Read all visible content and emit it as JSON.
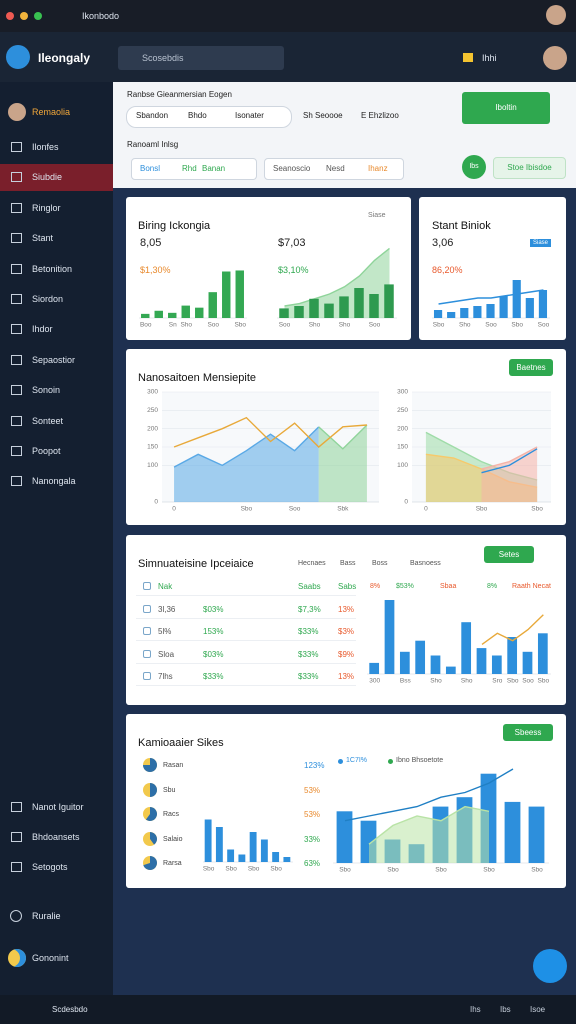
{
  "browser": {
    "tab": "Ikonbodo"
  },
  "header": {
    "logo": "Ileongaly",
    "search": "Scosebdis",
    "user": "Ihhi"
  },
  "sidebar": {
    "profile": "Remaolia",
    "active": 1,
    "items": [
      "Ilonfes",
      "Siubdie",
      "Ringlor",
      "Stant",
      "Betonition",
      "Siordon",
      "Ihdor",
      "Sepaostior",
      "Sonoin",
      "Sonteet",
      "Poopot",
      "Nanongala"
    ],
    "bottom": [
      "Nanot Iguitor",
      "Bhdoansets",
      "Setogots"
    ],
    "account": "Ruralie",
    "workspace": "Gononint"
  },
  "filters": {
    "label1": "Ranbse Gieanmersian Eogen",
    "chips": [
      "Sbandon",
      "Bhdo",
      "Isonater"
    ],
    "options": [
      "Sh Seoooe",
      "E Ehzlizoo"
    ],
    "button": "Iboltin",
    "label2": "Ranoaml Inlsg",
    "select1": [
      "Bonsl",
      "Rhd",
      "Banan"
    ],
    "select2": [
      "Seanoscio",
      "Nesd",
      "Ihanz"
    ],
    "badge": "Ibs",
    "button2": "Stoe Ibisdoe"
  },
  "card1": {
    "title": "Biring Ickongia",
    "tag": "Siase",
    "charts": [
      {
        "kpi": "8,05",
        "delta": "$1,30%",
        "ylim": [
          0,
          60
        ],
        "categories": [
          "Boo",
          null,
          "Sn",
          "Sho",
          null,
          "Soo",
          null,
          "Sbo"
        ],
        "series": [
          {
            "type": "bar",
            "color": "#34a853",
            "values": [
              4,
              7,
              5,
              12,
              10,
              25,
              45,
              46
            ]
          }
        ]
      },
      {
        "kpi": "$7,03",
        "delta": "$3,10%",
        "ylim": [
          0,
          60
        ],
        "categories": [
          "Soo",
          null,
          "Sho",
          null,
          "Sho",
          null,
          "Soo",
          null
        ],
        "series": [
          {
            "type": "area",
            "color": "#8fd49a",
            "values": [
              10,
              12,
              16,
              20,
              26,
              35,
              48,
              58
            ]
          },
          {
            "type": "bar",
            "color": "#2e9a4f",
            "values": [
              8,
              10,
              16,
              12,
              18,
              25,
              20,
              28
            ]
          }
        ]
      }
    ]
  },
  "card2": {
    "title": "Stant Biniok",
    "tag": "Siase",
    "chart": {
      "kpi": "3,06",
      "delta": "86,20%",
      "ylim": [
        0,
        60
      ],
      "categories": [
        "Sbo",
        null,
        "Sho",
        null,
        "Soo",
        null,
        "Sbo",
        null,
        "Soo"
      ],
      "series": [
        {
          "type": "bar",
          "color": "#2d8fdc",
          "values": [
            8,
            6,
            10,
            12,
            14,
            22,
            38,
            20,
            28
          ]
        },
        {
          "type": "line",
          "color": "#2d8fdc",
          "values": [
            14,
            16,
            18,
            20,
            20,
            22,
            24,
            26,
            28
          ]
        }
      ]
    }
  },
  "card3": {
    "title": "Nanosaitoen Mensiepite",
    "button": "Baetnes",
    "charts": [
      {
        "ylim": [
          0,
          300
        ],
        "yticks": [
          0,
          100,
          150,
          200,
          250,
          300
        ],
        "categories": [
          "0",
          null,
          null,
          "Sbo",
          null,
          "Soo",
          null,
          "Sbk",
          null
        ],
        "series": [
          {
            "type": "area",
            "color": "#5aa9e6",
            "values": [
              95,
              130,
              100,
              140,
              185,
              140,
              205,
              null,
              null
            ]
          },
          {
            "type": "area",
            "color": "#8fd49a",
            "values": [
              null,
              null,
              null,
              null,
              null,
              null,
              205,
              145,
              210
            ]
          },
          {
            "type": "line",
            "color": "#e8a93a",
            "values": [
              150,
              175,
              200,
              230,
              165,
              215,
              150,
              205,
              210
            ]
          }
        ]
      },
      {
        "ylim": [
          0,
          300
        ],
        "yticks": [
          0,
          100,
          150,
          200,
          250,
          300
        ],
        "categories": [
          "0",
          null,
          "Sbo",
          null,
          "Sbo"
        ],
        "series": [
          {
            "type": "area",
            "color": "#9fdca8",
            "values": [
              190,
              150,
              110,
              80,
              60
            ]
          },
          {
            "type": "area",
            "color": "#f7c96a",
            "values": [
              130,
              120,
              90,
              55,
              40
            ]
          },
          {
            "type": "area",
            "color": "#f5b3a8",
            "values": [
              null,
              null,
              90,
              110,
              150
            ]
          },
          {
            "type": "line",
            "color": "#2d8fdc",
            "values": [
              null,
              null,
              80,
              100,
              145
            ]
          }
        ]
      }
    ]
  },
  "card4": {
    "title": "Simnuateisine Ipceiaice",
    "button": "Setes",
    "head": [
      "Hecnaes",
      "Bass",
      "Boss",
      "Basnoess"
    ],
    "rows": [
      [
        "Nak",
        "",
        "Saabs",
        "Sabs"
      ],
      [
        "3l,36",
        "$03%",
        "$7,3%",
        "13%"
      ],
      [
        "5l%",
        "153%",
        "$33%",
        "$3%"
      ],
      [
        "Sloa",
        "$03%",
        "$33%",
        "$9%"
      ],
      [
        "7lhs",
        "$33%",
        "$33%",
        "13%"
      ]
    ],
    "legend": [
      "8%",
      "$53%",
      "Sbaa",
      "8%",
      "Raath Necat"
    ],
    "chart": {
      "ylim": [
        0,
        100
      ],
      "categories": [
        "300",
        null,
        "Bss",
        null,
        "Sho",
        null,
        "Sho",
        null,
        "Sro",
        "Sbo",
        "Soo",
        "Sbo"
      ],
      "series": [
        {
          "type": "bar",
          "color": "#2d8fdc",
          "values": [
            15,
            100,
            30,
            45,
            25,
            10,
            70,
            35,
            25,
            50,
            30,
            55
          ]
        },
        {
          "type": "line",
          "color": "#e8a93a",
          "values": [
            null,
            null,
            null,
            null,
            null,
            null,
            null,
            40,
            55,
            45,
            60,
            80
          ]
        }
      ]
    }
  },
  "card5": {
    "title": "Kamioaaier Sikes",
    "button": "Sbeess",
    "items": [
      {
        "label": "Rasan",
        "value": "123%",
        "share": 75
      },
      {
        "label": "Sbu",
        "value": "53%",
        "share": 50
      },
      {
        "label": "Racs",
        "value": "53%",
        "share": 60
      },
      {
        "label": "Salaio",
        "value": "33%",
        "share": 40
      },
      {
        "label": "Rarsa",
        "value": "63%",
        "share": 70
      }
    ],
    "mini": {
      "ylim": [
        0,
        100
      ],
      "categories": [
        "Sbo",
        null,
        "Sbo",
        null,
        "Sbo",
        null,
        "Sbo",
        null
      ],
      "series": [
        {
          "type": "bar",
          "color": "#2d8fdc",
          "values": [
            85,
            70,
            25,
            15,
            60,
            45,
            20,
            10
          ]
        }
      ]
    },
    "legend": [
      "1C7I%",
      "Ibno Bhsoetote"
    ],
    "chart": {
      "ylim": [
        0,
        100
      ],
      "categories": [
        "Sbo",
        null,
        "Sbo",
        null,
        "Sbo",
        null,
        "Sbo",
        null,
        "Sbo"
      ],
      "series": [
        {
          "type": "bar",
          "color": "#2d8fdc",
          "values": [
            55,
            45,
            25,
            20,
            60,
            70,
            95,
            65,
            60
          ]
        },
        {
          "type": "area",
          "color": "#b9e3a6",
          "values": [
            null,
            20,
            40,
            50,
            45,
            60,
            55,
            null,
            null
          ]
        },
        {
          "type": "line",
          "color": "#1f7fc4",
          "values": [
            45,
            50,
            55,
            60,
            70,
            75,
            85,
            100,
            null
          ]
        }
      ]
    }
  },
  "footer": {
    "text": "Scdesbdo",
    "links": [
      "Ihs",
      "Ibs",
      "Isoe"
    ]
  }
}
